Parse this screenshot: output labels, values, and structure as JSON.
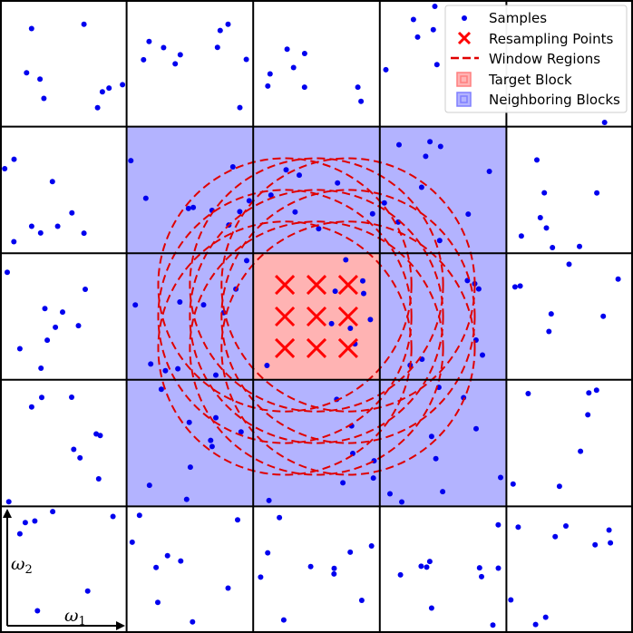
{
  "diagram": {
    "grid": {
      "rows": 5,
      "cols": 5
    },
    "target_block": {
      "row": 2,
      "col": 2
    },
    "neighbor_range": {
      "row_start": 1,
      "row_end": 3,
      "col_start": 1,
      "col_end": 3
    },
    "colors": {
      "sample": "#0000ee",
      "resample": "#ff0000",
      "window": "#e00000",
      "target_fill": "#ffb3b3",
      "neighbor_fill": "#b3b3ff",
      "grid_line": "#000000"
    }
  },
  "legend": {
    "items": [
      {
        "label": "Samples",
        "icon": "dot-icon"
      },
      {
        "label": "Resampling Points",
        "icon": "cross-icon"
      },
      {
        "label": "Window Regions",
        "icon": "dashed-line-icon"
      },
      {
        "label": "Target Block",
        "icon": "red-square-icon"
      },
      {
        "label": "Neighboring Blocks",
        "icon": "blue-square-icon"
      }
    ]
  },
  "axes": {
    "omega1": {
      "symbol": "ω",
      "sub": "1"
    },
    "omega2": {
      "symbol": "ω",
      "sub": "2"
    }
  }
}
